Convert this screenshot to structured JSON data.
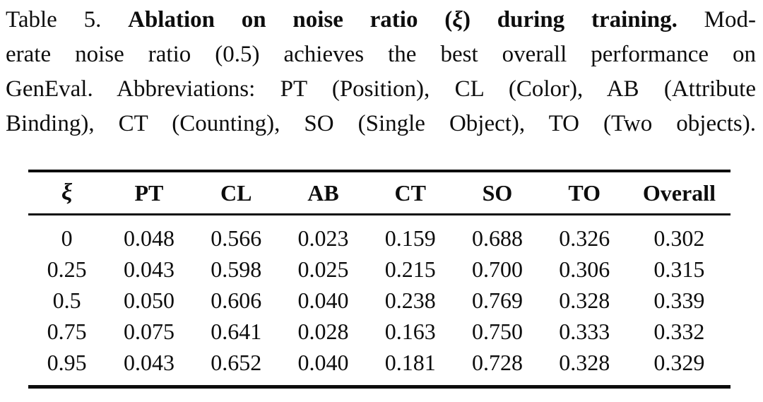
{
  "caption": {
    "lines": [
      {
        "segments": [
          {
            "text": "Table 5. ",
            "bold": false,
            "italic": false
          },
          {
            "text": "Ablation on noise ratio (",
            "bold": true,
            "italic": false
          },
          {
            "text": "ξ",
            "bold": true,
            "italic": true
          },
          {
            "text": ") during training. ",
            "bold": true,
            "italic": false
          },
          {
            "text": "Mod-",
            "bold": false,
            "italic": false
          }
        ]
      },
      {
        "segments": [
          {
            "text": "erate noise ratio (0.5) achieves the best overall performance on",
            "bold": false,
            "italic": false
          }
        ]
      },
      {
        "segments": [
          {
            "text": "GenEval. Abbreviations: PT (Position), CL (Color), AB (Attribute",
            "bold": false,
            "italic": false
          }
        ]
      },
      {
        "segments": [
          {
            "text": "Binding), CT (Counting), SO (Single Object), TO (Two objects).",
            "bold": false,
            "italic": false
          }
        ]
      }
    ]
  },
  "table": {
    "columns": [
      "ξ",
      "PT",
      "CL",
      "AB",
      "CT",
      "SO",
      "TO",
      "Overall"
    ],
    "rows": [
      [
        "0",
        "0.048",
        "0.566",
        "0.023",
        "0.159",
        "0.688",
        "0.326",
        "0.302"
      ],
      [
        "0.25",
        "0.043",
        "0.598",
        "0.025",
        "0.215",
        "0.700",
        "0.306",
        "0.315"
      ],
      [
        "0.5",
        "0.050",
        "0.606",
        "0.040",
        "0.238",
        "0.769",
        "0.328",
        "0.339"
      ],
      [
        "0.75",
        "0.075",
        "0.641",
        "0.028",
        "0.163",
        "0.750",
        "0.333",
        "0.332"
      ],
      [
        "0.95",
        "0.043",
        "0.652",
        "0.040",
        "0.181",
        "0.728",
        "0.328",
        "0.329"
      ]
    ]
  },
  "colors": {
    "text": "#0d0d0d",
    "background": "#ffffff",
    "rule": "#0d0d0d"
  }
}
